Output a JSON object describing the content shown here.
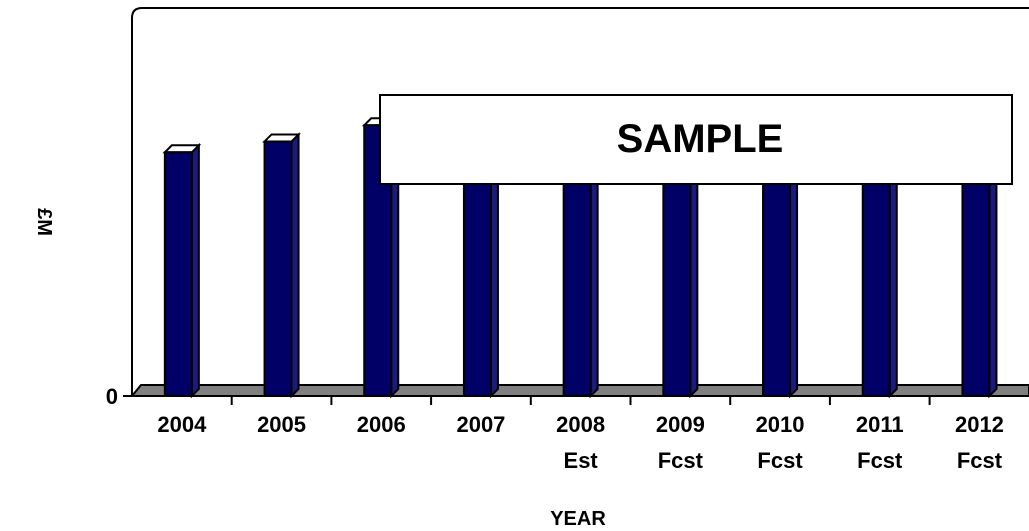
{
  "chart_data": {
    "type": "bar",
    "categories": [
      [
        "2004"
      ],
      [
        "2005"
      ],
      [
        "2006"
      ],
      [
        "2007"
      ],
      [
        "2008",
        "Est"
      ],
      [
        "2009",
        "Fcst"
      ],
      [
        "2010",
        "Fcst"
      ],
      [
        "2011",
        "Fcst"
      ],
      [
        "2012",
        "Fcst"
      ]
    ],
    "values": [
      0.9,
      0.94,
      1.0,
      1.0,
      1.0,
      1.0,
      1.0,
      1.0,
      1.0
    ],
    "xlabel": "YEAR",
    "ylabel": "£M",
    "yticks": [
      "0"
    ],
    "ylim": [
      0,
      1.3
    ],
    "grid": false,
    "bar_color": "#000066",
    "bar_side_color": "#1a1a80",
    "floor_color": "#808080"
  },
  "overlay": {
    "label": "SAMPLE"
  }
}
